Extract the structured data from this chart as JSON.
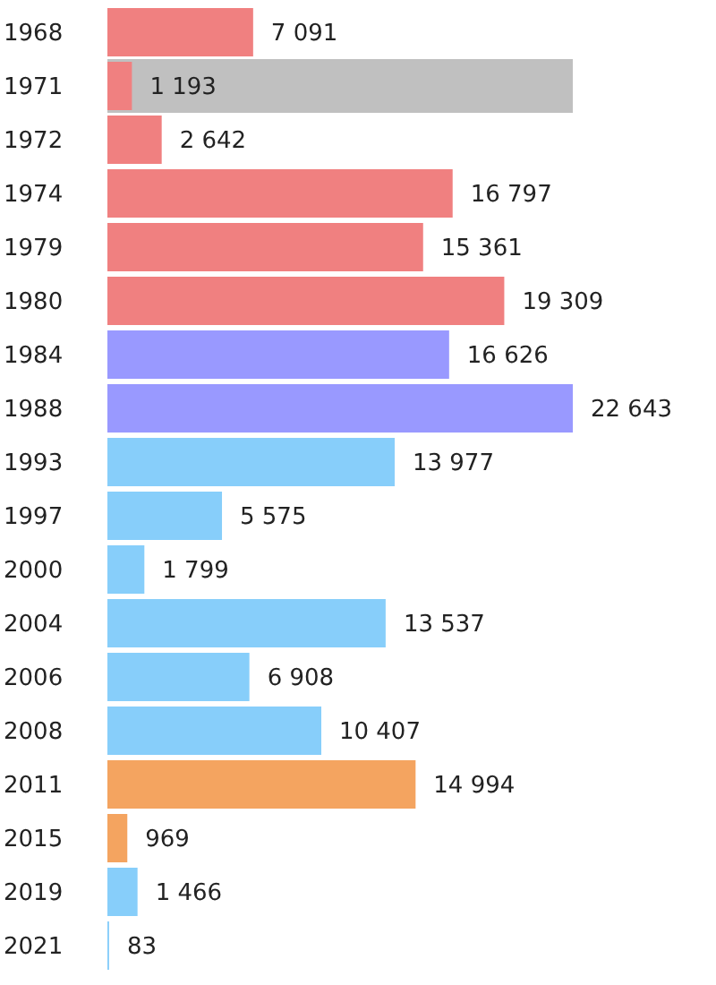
{
  "chart_data": {
    "type": "bar",
    "orientation": "horizontal",
    "categories": [
      "1968",
      "1971",
      "1972",
      "1974",
      "1979",
      "1980",
      "1984",
      "1988",
      "1993",
      "1997",
      "2000",
      "2004",
      "2006",
      "2008",
      "2011",
      "2015",
      "2019",
      "2021"
    ],
    "values": [
      7091,
      1193,
      2642,
      16797,
      15361,
      19309,
      16626,
      22643,
      13977,
      5575,
      1799,
      13537,
      6908,
      10407,
      14994,
      969,
      1466,
      83
    ],
    "value_labels": [
      "7 091",
      "1 193",
      "2 642",
      "16 797",
      "15 361",
      "19 309",
      "16 626",
      "22 643",
      "13 977",
      "5 575",
      "1 799",
      "13 537",
      "6 908",
      "10 407",
      "14 994",
      "969",
      "1 466",
      "83"
    ],
    "colors": [
      "#f08080",
      "#f08080",
      "#f08080",
      "#f08080",
      "#f08080",
      "#f08080",
      "#9999ff",
      "#9999ff",
      "#87cefa",
      "#87cefa",
      "#87cefa",
      "#87cefa",
      "#87cefa",
      "#87cefa",
      "#f4a460",
      "#f4a460",
      "#87cefa",
      "#87cefa"
    ],
    "bands": [
      {
        "axis": "y",
        "from": "1971",
        "to": "1971",
        "color": "#c0c0c0"
      }
    ],
    "grid": false,
    "legend": false
  }
}
